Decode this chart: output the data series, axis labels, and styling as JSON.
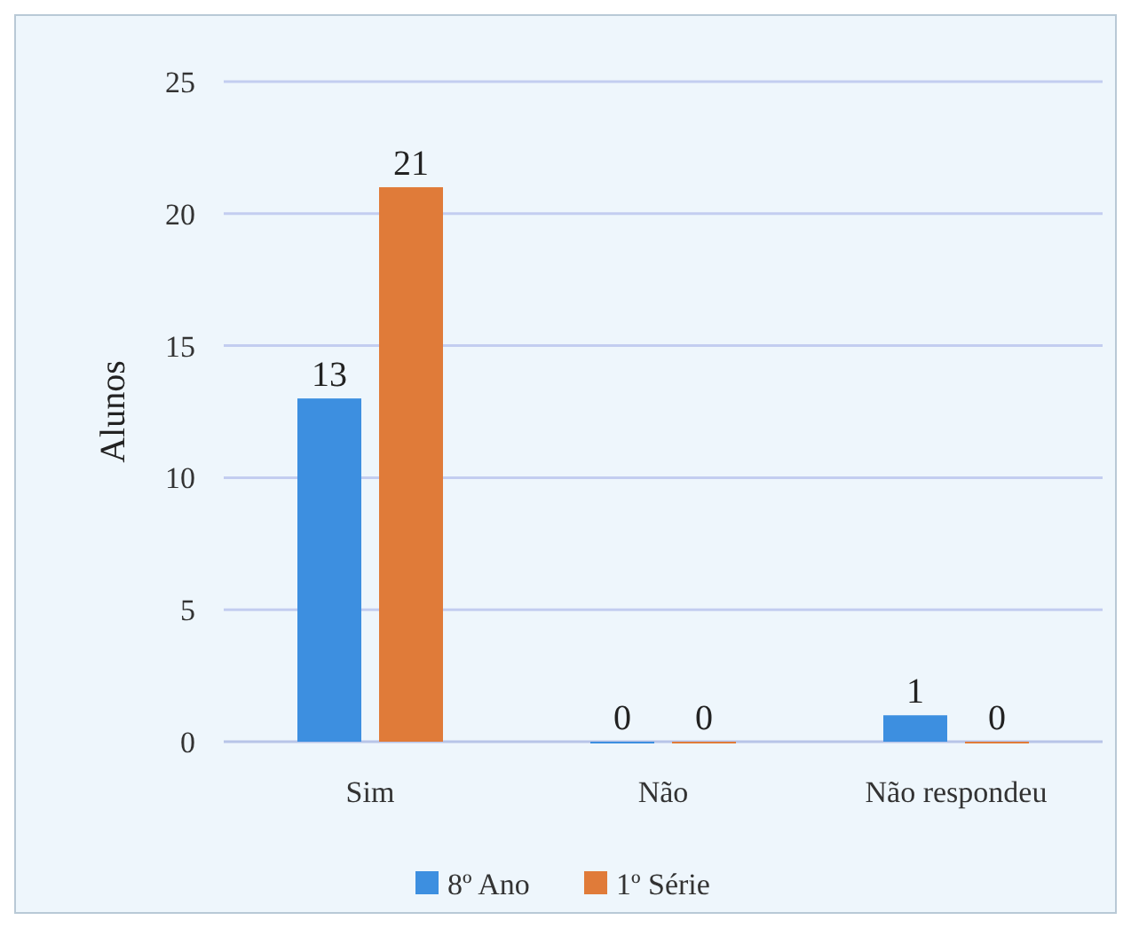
{
  "chart_data": {
    "type": "bar",
    "ylabel": "Alunos",
    "categories": [
      "Sim",
      "Não",
      "Não respondeu"
    ],
    "series": [
      {
        "name": "8º Ano",
        "color": "#3d8fe0",
        "values": [
          13,
          0,
          1
        ]
      },
      {
        "name": "1º Série",
        "color": "#e07b39",
        "values": [
          21,
          0,
          0
        ]
      }
    ],
    "ylim": [
      0,
      25
    ],
    "yticks": [
      0,
      5,
      10,
      15,
      20,
      25
    ],
    "grid": "y",
    "legend": "bottom",
    "data_labels": true
  }
}
